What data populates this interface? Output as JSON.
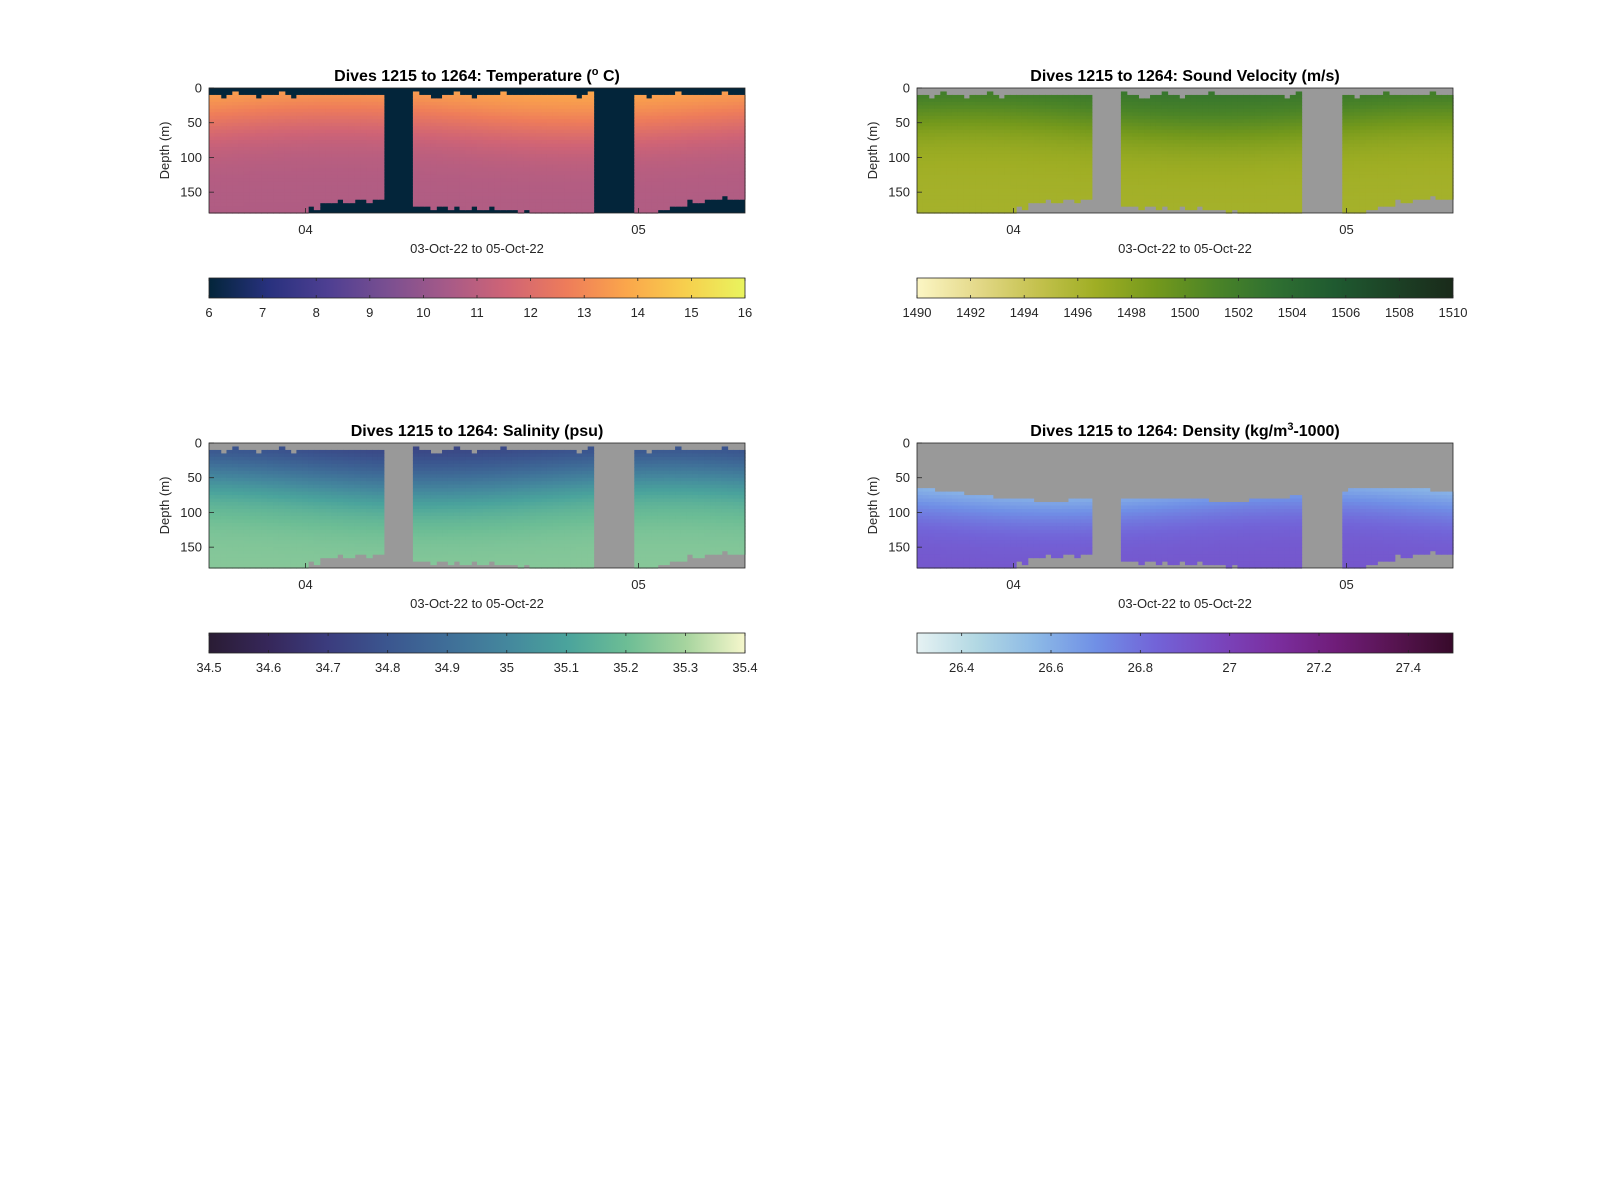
{
  "figure": {
    "background": "#ffffff",
    "mask_gray": "#999999",
    "time_range_days": [
      0.71,
      2.32
    ],
    "depth_range": [
      0,
      180
    ],
    "gaps_days": [
      [
        1.23,
        1.32
      ],
      [
        1.86,
        1.99
      ]
    ]
  },
  "chart_data": [
    {
      "type": "heatmap",
      "id": "temperature",
      "title": "Dives 1215 to 1264: Temperature (° C)",
      "title_parts": {
        "pre": "Dives 1215 to 1264: Temperature (",
        "sup": "o",
        "post": " C)"
      },
      "ylabel": "Depth (m)",
      "xlabel": "03-Oct-22 to 05-Oct-22",
      "yticks": [
        0,
        50,
        100,
        150
      ],
      "xticks": [
        {
          "value": 1,
          "label": "04"
        },
        {
          "value": 2,
          "label": "05"
        }
      ],
      "mask_color": "#03253a",
      "colorbar": {
        "min": 6,
        "max": 16,
        "ticks": [
          6,
          7,
          8,
          9,
          10,
          11,
          12,
          13,
          14,
          15,
          16
        ],
        "tick_labels": [
          "6",
          "7",
          "8",
          "9",
          "10",
          "11",
          "12",
          "13",
          "14",
          "15",
          "16"
        ],
        "colors": [
          "#03253a",
          "#28317e",
          "#4e3f92",
          "#7a4f91",
          "#a65a88",
          "#d06475",
          "#ee7c5a",
          "#fba64b",
          "#f7cf4d",
          "#e9f45e"
        ]
      },
      "profile": {
        "surface": 14.2,
        "mixed_depth": 45,
        "deep": 10.7,
        "scale": 25
      }
    },
    {
      "type": "heatmap",
      "id": "sound_velocity",
      "title": "Dives 1215 to 1264: Sound Velocity (m/s)",
      "title_parts": {
        "pre": "Dives 1215 to 1264: Sound Velocity (m/s)",
        "sup": "",
        "post": ""
      },
      "ylabel": "Depth (m)",
      "xlabel": "03-Oct-22 to 05-Oct-22",
      "yticks": [
        0,
        50,
        100,
        150
      ],
      "xticks": [
        {
          "value": 1,
          "label": "04"
        },
        {
          "value": 2,
          "label": "05"
        }
      ],
      "mask_color": "#999999",
      "colorbar": {
        "min": 1490,
        "max": 1510,
        "ticks": [
          1490,
          1492,
          1494,
          1496,
          1498,
          1500,
          1502,
          1504,
          1506,
          1508,
          1510
        ],
        "tick_labels": [
          "1490",
          "1492",
          "1494",
          "1496",
          "1498",
          "1500",
          "1502",
          "1504",
          "1506",
          "1508",
          "1510"
        ],
        "colors": [
          "#fcf6c4",
          "#e4d98a",
          "#c5c24f",
          "#9fae24",
          "#74991c",
          "#4b8427",
          "#2f7031",
          "#1f5a30",
          "#1c4226",
          "#1a2a1a"
        ]
      },
      "profile": {
        "surface": 1503.6,
        "mixed_depth": 45,
        "deep": 1496.3,
        "scale": 25
      }
    },
    {
      "type": "heatmap",
      "id": "salinity",
      "title": "Dives 1215 to 1264: Salinity (psu)",
      "title_parts": {
        "pre": "Dives 1215 to 1264: Salinity (psu)",
        "sup": "",
        "post": ""
      },
      "ylabel": "Depth (m)",
      "xlabel": "03-Oct-22 to 05-Oct-22",
      "yticks": [
        0,
        50,
        100,
        150
      ],
      "xticks": [
        {
          "value": 1,
          "label": "04"
        },
        {
          "value": 2,
          "label": "05"
        }
      ],
      "mask_color": "#999999",
      "colorbar": {
        "min": 34.5,
        "max": 35.4,
        "ticks": [
          34.5,
          34.6,
          34.7,
          34.8,
          34.9,
          35,
          35.1,
          35.2,
          35.3,
          35.4
        ],
        "tick_labels": [
          "34.5",
          "34.6",
          "34.7",
          "34.8",
          "34.9",
          "35",
          "35.1",
          "35.2",
          "35.3",
          "35.4"
        ],
        "colors": [
          "#2a1c34",
          "#36275a",
          "#3b3c7e",
          "#3b568f",
          "#3f6e98",
          "#44879d",
          "#4aa39c",
          "#6cbd95",
          "#a6d49e",
          "#f6f7cc"
        ]
      },
      "profile": {
        "surface": 34.66,
        "mixed_depth": 50,
        "deep": 35.25,
        "scale": 28
      }
    },
    {
      "type": "heatmap",
      "id": "density",
      "title": "Dives 1215 to 1264: Density (kg/m³-1000)",
      "title_parts": {
        "pre": "Dives 1215 to 1264: Density (kg/m",
        "sup": "3",
        "post": "-1000)"
      },
      "ylabel": "Depth (m)",
      "xlabel": "03-Oct-22 to 05-Oct-22",
      "yticks": [
        0,
        50,
        100,
        150
      ],
      "xticks": [
        {
          "value": 1,
          "label": "04"
        },
        {
          "value": 2,
          "label": "05"
        }
      ],
      "mask_color": "#999999",
      "colorbar": {
        "min": 26.3,
        "max": 27.5,
        "ticks": [
          26.4,
          26.6,
          26.8,
          27,
          27.2,
          27.4
        ],
        "tick_labels": [
          "26.4",
          "26.6",
          "26.8",
          "27",
          "27.2",
          "27.4"
        ],
        "colors": [
          "#e6f2f3",
          "#b2d8e3",
          "#8cb9e6",
          "#7090e6",
          "#7264d8",
          "#7947bf",
          "#7b2fa0",
          "#701d7a",
          "#571451",
          "#370a2a"
        ]
      },
      "profile": {
        "surface": 26.4,
        "mixed_depth": 80,
        "deep": 26.9,
        "scale": 25,
        "shallow_cut": 75
      }
    }
  ]
}
